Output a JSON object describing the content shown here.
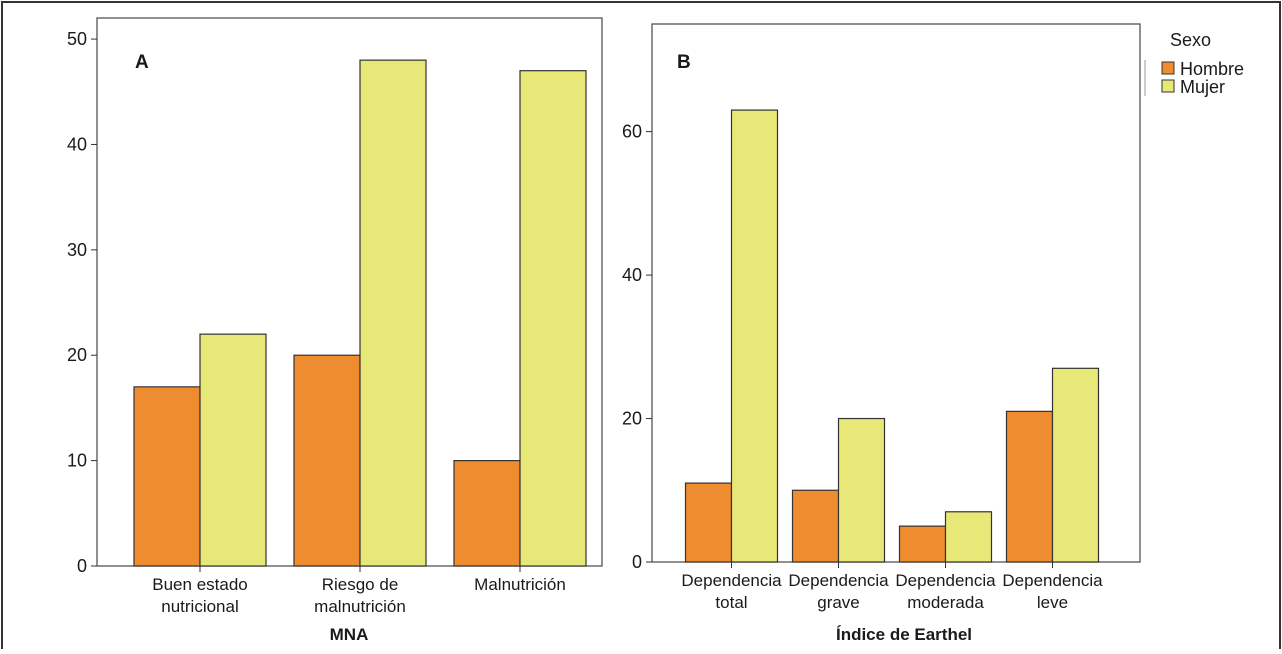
{
  "legend": {
    "title": "Sexo",
    "items": [
      {
        "label": "Hombre",
        "color": "#f08c30"
      },
      {
        "label": "Mujer",
        "color": "#e8e878"
      }
    ]
  },
  "chart_data": [
    {
      "type": "bar",
      "panel": "A",
      "xlabel": "MNA",
      "ylabel": "",
      "ylim": [
        0,
        52
      ],
      "yticks": [
        0,
        10,
        20,
        30,
        40,
        50
      ],
      "categories": [
        [
          "Buen estado",
          "nutricional"
        ],
        [
          "Riesgo de",
          "malnutrición"
        ],
        [
          "Malnutrición"
        ]
      ],
      "series": [
        {
          "name": "Hombre",
          "values": [
            17,
            20,
            10
          ]
        },
        {
          "name": "Mujer",
          "values": [
            22,
            48,
            47
          ]
        }
      ]
    },
    {
      "type": "bar",
      "panel": "B",
      "xlabel": "Índice de Earthel",
      "ylabel": "",
      "ylim": [
        0,
        75
      ],
      "yticks": [
        0,
        20,
        40,
        60
      ],
      "categories": [
        [
          "Dependencia",
          "total"
        ],
        [
          "Dependencia",
          "grave"
        ],
        [
          "Dependencia",
          "moderada"
        ],
        [
          "Dependencia",
          "leve"
        ]
      ],
      "series": [
        {
          "name": "Hombre",
          "values": [
            11,
            10,
            5,
            21
          ]
        },
        {
          "name": "Mujer",
          "values": [
            63,
            20,
            7,
            27
          ]
        }
      ]
    }
  ]
}
